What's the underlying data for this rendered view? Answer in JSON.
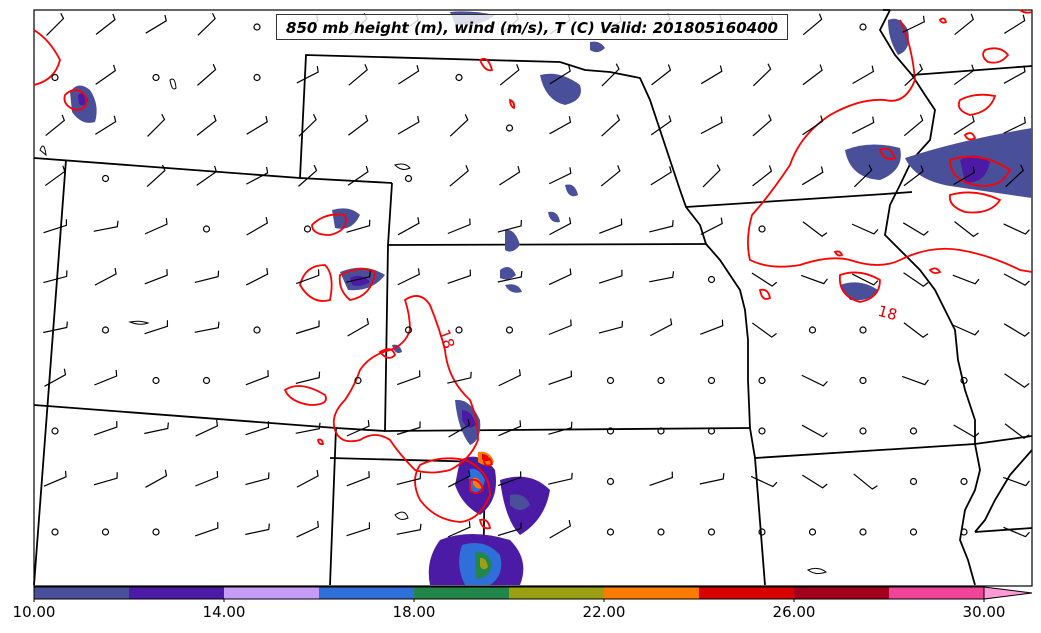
{
  "title": "850 mb height (m), wind (m/s), T (C) Valid: 201805160400",
  "colors": {
    "state_border": "#000000",
    "temp_contour": "#ff0000",
    "frame": "#000000"
  },
  "temperature_contour": {
    "level_label": "18"
  },
  "colorbar": {
    "min": 10,
    "max": 30,
    "extend": "max",
    "levels": [
      10,
      12,
      14,
      16,
      18,
      20,
      22,
      24,
      26,
      28,
      30
    ],
    "colors": [
      "#4a4f9a",
      "#4b1ba6",
      "#c79bf7",
      "#2f6fd9",
      "#22864a",
      "#9aa012",
      "#ff7a00",
      "#d90000",
      "#a3001e",
      "#f0449a"
    ],
    "extend_color": "#ff9ad6",
    "tick_labels": [
      "10.00",
      "14.00",
      "18.00",
      "22.00",
      "26.00",
      "30.00"
    ]
  },
  "wind_barbs": {
    "icon": "wind-barb-icon",
    "calm_icon": "calm-wind-circle-icon"
  }
}
